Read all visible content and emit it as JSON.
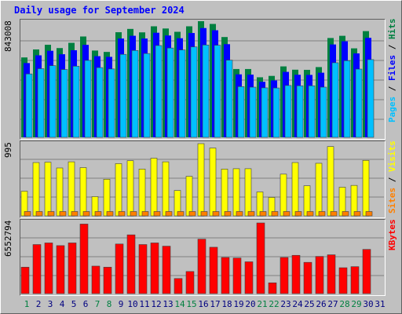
{
  "title": "Daily usage for September 2024",
  "y_max_labels": {
    "hits_files_pages": "843008",
    "sites_visits": "995",
    "kbytes": "6552794"
  },
  "right_labels": {
    "top": [
      {
        "text": "Pages",
        "color": "#00c0ff"
      },
      {
        "text": " / ",
        "color": "#000000"
      },
      {
        "text": "Files",
        "color": "#0000ff"
      },
      {
        "text": " / ",
        "color": "#000000"
      },
      {
        "text": "Hits",
        "color": "#008040"
      }
    ],
    "middle": [
      {
        "text": "Sites",
        "color": "#ff8000"
      },
      {
        "text": " / ",
        "color": "#000000"
      },
      {
        "text": "Visits",
        "color": "#ffff00"
      }
    ],
    "bottom": [
      {
        "text": "KBytes",
        "color": "#ff0000"
      }
    ]
  },
  "colors": {
    "hits": "#008040",
    "files": "#0000ff",
    "pages": "#00c0ff",
    "visits": "#ffff00",
    "sites": "#ff8000",
    "kbytes": "#ff0000",
    "weekday": "#000080",
    "weekend": "#008040"
  },
  "chart_data": [
    {
      "type": "bar",
      "categories": [
        "1",
        "2",
        "3",
        "4",
        "5",
        "6",
        "7",
        "8",
        "9",
        "10",
        "11",
        "12",
        "13",
        "14",
        "15",
        "16",
        "17",
        "18",
        "19",
        "20",
        "21",
        "22",
        "23",
        "24",
        "25",
        "26",
        "27",
        "28",
        "29",
        "30",
        "31"
      ],
      "weekend_days": [
        1,
        7,
        8,
        14,
        15,
        21,
        22,
        28,
        29
      ],
      "ylim": [
        0,
        843008
      ],
      "series": [
        {
          "name": "Hits",
          "values": [
            580000,
            638000,
            672000,
            648000,
            686000,
            732000,
            630000,
            620000,
            763000,
            787000,
            762000,
            806000,
            790000,
            766000,
            806000,
            843008,
            823000,
            728000,
            496000,
            496000,
            436000,
            446000,
            515000,
            491000,
            490000,
            510000,
            721000,
            737000,
            646000,
            771000,
            0
          ]
        },
        {
          "name": "Files",
          "values": [
            562000,
            618000,
            651000,
            626000,
            655000,
            694000,
            612000,
            607000,
            740000,
            760000,
            740000,
            782000,
            762000,
            742000,
            780000,
            816000,
            800000,
            699000,
            480000,
            478000,
            426000,
            436000,
            498000,
            477000,
            476000,
            492000,
            697000,
            720000,
            632000,
            745000,
            0
          ]
        },
        {
          "name": "Pages",
          "values": [
            506000,
            544000,
            566000,
            538000,
            562000,
            604000,
            552000,
            542000,
            648000,
            676000,
            654000,
            712000,
            694000,
            680000,
            702000,
            716000,
            714000,
            606000,
            414000,
            410000,
            405000,
            404000,
            422000,
            420000,
            420000,
            410000,
            587000,
            602000,
            541000,
            610000,
            0
          ]
        }
      ]
    },
    {
      "type": "bar",
      "categories": [
        "1",
        "2",
        "3",
        "4",
        "5",
        "6",
        "7",
        "8",
        "9",
        "10",
        "11",
        "12",
        "13",
        "14",
        "15",
        "16",
        "17",
        "18",
        "19",
        "20",
        "21",
        "22",
        "23",
        "24",
        "25",
        "26",
        "27",
        "28",
        "29",
        "30",
        "31"
      ],
      "ylim": [
        0,
        995
      ],
      "series": [
        {
          "name": "Visits",
          "values": [
            340,
            735,
            740,
            660,
            745,
            665,
            265,
            505,
            720,
            760,
            645,
            795,
            745,
            350,
            545,
            995,
            935,
            645,
            650,
            650,
            330,
            255,
            575,
            735,
            415,
            725,
            955,
            395,
            420,
            765,
            0
          ]
        },
        {
          "name": "Sites",
          "values": [
            60,
            60,
            60,
            60,
            60,
            60,
            60,
            60,
            60,
            60,
            60,
            60,
            60,
            60,
            60,
            60,
            60,
            60,
            60,
            60,
            60,
            60,
            60,
            60,
            60,
            60,
            60,
            60,
            60,
            60,
            0
          ]
        }
      ]
    },
    {
      "type": "bar",
      "categories": [
        "1",
        "2",
        "3",
        "4",
        "5",
        "6",
        "7",
        "8",
        "9",
        "10",
        "11",
        "12",
        "13",
        "14",
        "15",
        "16",
        "17",
        "18",
        "19",
        "20",
        "21",
        "22",
        "23",
        "24",
        "25",
        "26",
        "27",
        "28",
        "29",
        "30",
        "31"
      ],
      "ylim": [
        0,
        6552794
      ],
      "series": [
        {
          "name": "KBytes",
          "values": [
            2450000,
            4550000,
            4700000,
            4450000,
            4700000,
            6450000,
            2550000,
            2450000,
            4600000,
            5450000,
            4550000,
            4700000,
            4400000,
            1400000,
            2050000,
            5050000,
            4300000,
            3350000,
            3300000,
            2950000,
            6552794,
            1000000,
            3350000,
            3550000,
            2900000,
            3450000,
            3600000,
            2400000,
            2500000,
            4100000,
            0
          ]
        }
      ]
    }
  ]
}
